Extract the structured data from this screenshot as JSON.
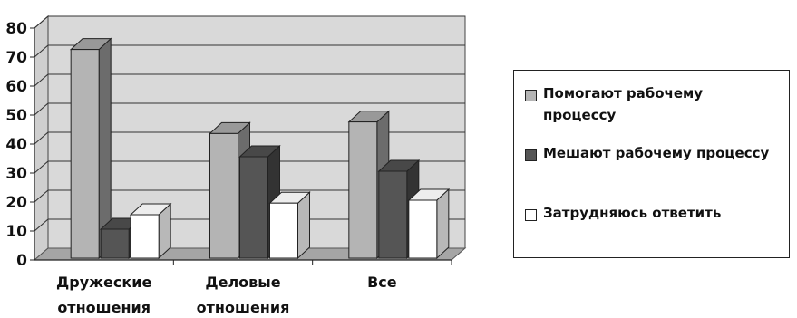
{
  "chart_data": {
    "type": "bar",
    "title": "",
    "xlabel": "",
    "ylabel": "",
    "categories": [
      "Дружеские\nотношения",
      "Деловые\nотношения",
      "Все"
    ],
    "series": [
      {
        "name": "Помогают рабочему\nпроцессу",
        "values": [
          72,
          43,
          47
        ],
        "color": "#b4b4b4"
      },
      {
        "name": "Мешают рабочему процессу",
        "values": [
          10,
          35,
          30
        ],
        "color": "#555555"
      },
      {
        "name": "Затрудняюсь ответить",
        "values": [
          15,
          19,
          20
        ],
        "color": "#ffffff"
      }
    ],
    "ylim": [
      0,
      80
    ],
    "yticks": [
      "0",
      "10",
      "20",
      "30",
      "40",
      "50",
      "60",
      "70",
      "80"
    ],
    "grid": true,
    "legend_position": "right",
    "style": "3d-clustered-column",
    "colors": {
      "wall": "#d9d9d9",
      "floor": "#a5a5a5",
      "gridline": "#333333"
    }
  }
}
